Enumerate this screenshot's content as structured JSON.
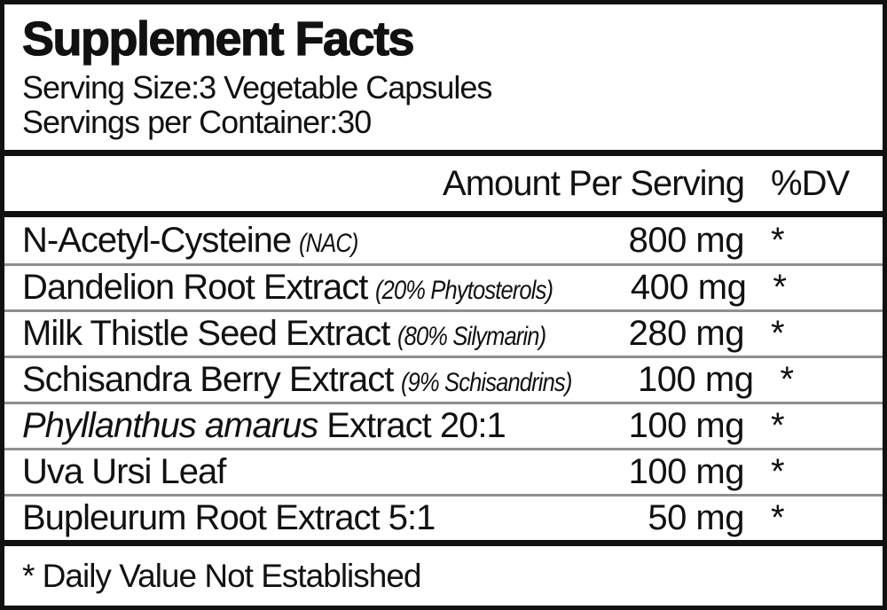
{
  "panel": {
    "title": "Supplement Facts",
    "serving_size": "Serving Size:3 Vegetable Capsules",
    "servings_per_container": "Servings per Container:30",
    "columns": {
      "amount": "Amount Per Serving",
      "dv": "%DV"
    },
    "rows": [
      {
        "name": "N-Acetyl-Cysteine",
        "note": "(NAC)",
        "amount": "800 mg",
        "dv": "*"
      },
      {
        "name": "Dandelion Root Extract",
        "note": "(20% Phytosterols)",
        "amount": "400 mg",
        "dv": "*"
      },
      {
        "name": "Milk Thistle Seed Extract",
        "note": "(80% Silymarin)",
        "amount": "280 mg",
        "dv": "*"
      },
      {
        "name": "Schisandra Berry Extract",
        "note": "(9% Schisandrins)",
        "amount": "100 mg",
        "dv": "*"
      },
      {
        "italic_name": "Phyllanthus amarus",
        "name": "Extract 20:1",
        "amount": "100 mg",
        "dv": "*"
      },
      {
        "name": "Uva Ursi Leaf",
        "amount": "100 mg",
        "dv": "*"
      },
      {
        "name": "Bupleurum Root Extract 5:1",
        "amount": "50 mg",
        "dv": "*"
      }
    ],
    "footnote": "* Daily Value Not Established"
  },
  "colors": {
    "background": "#ffffff",
    "text": "#111111",
    "border": "#111111",
    "thick_divider": "#111111",
    "row_divider": "#8f8f8f"
  }
}
